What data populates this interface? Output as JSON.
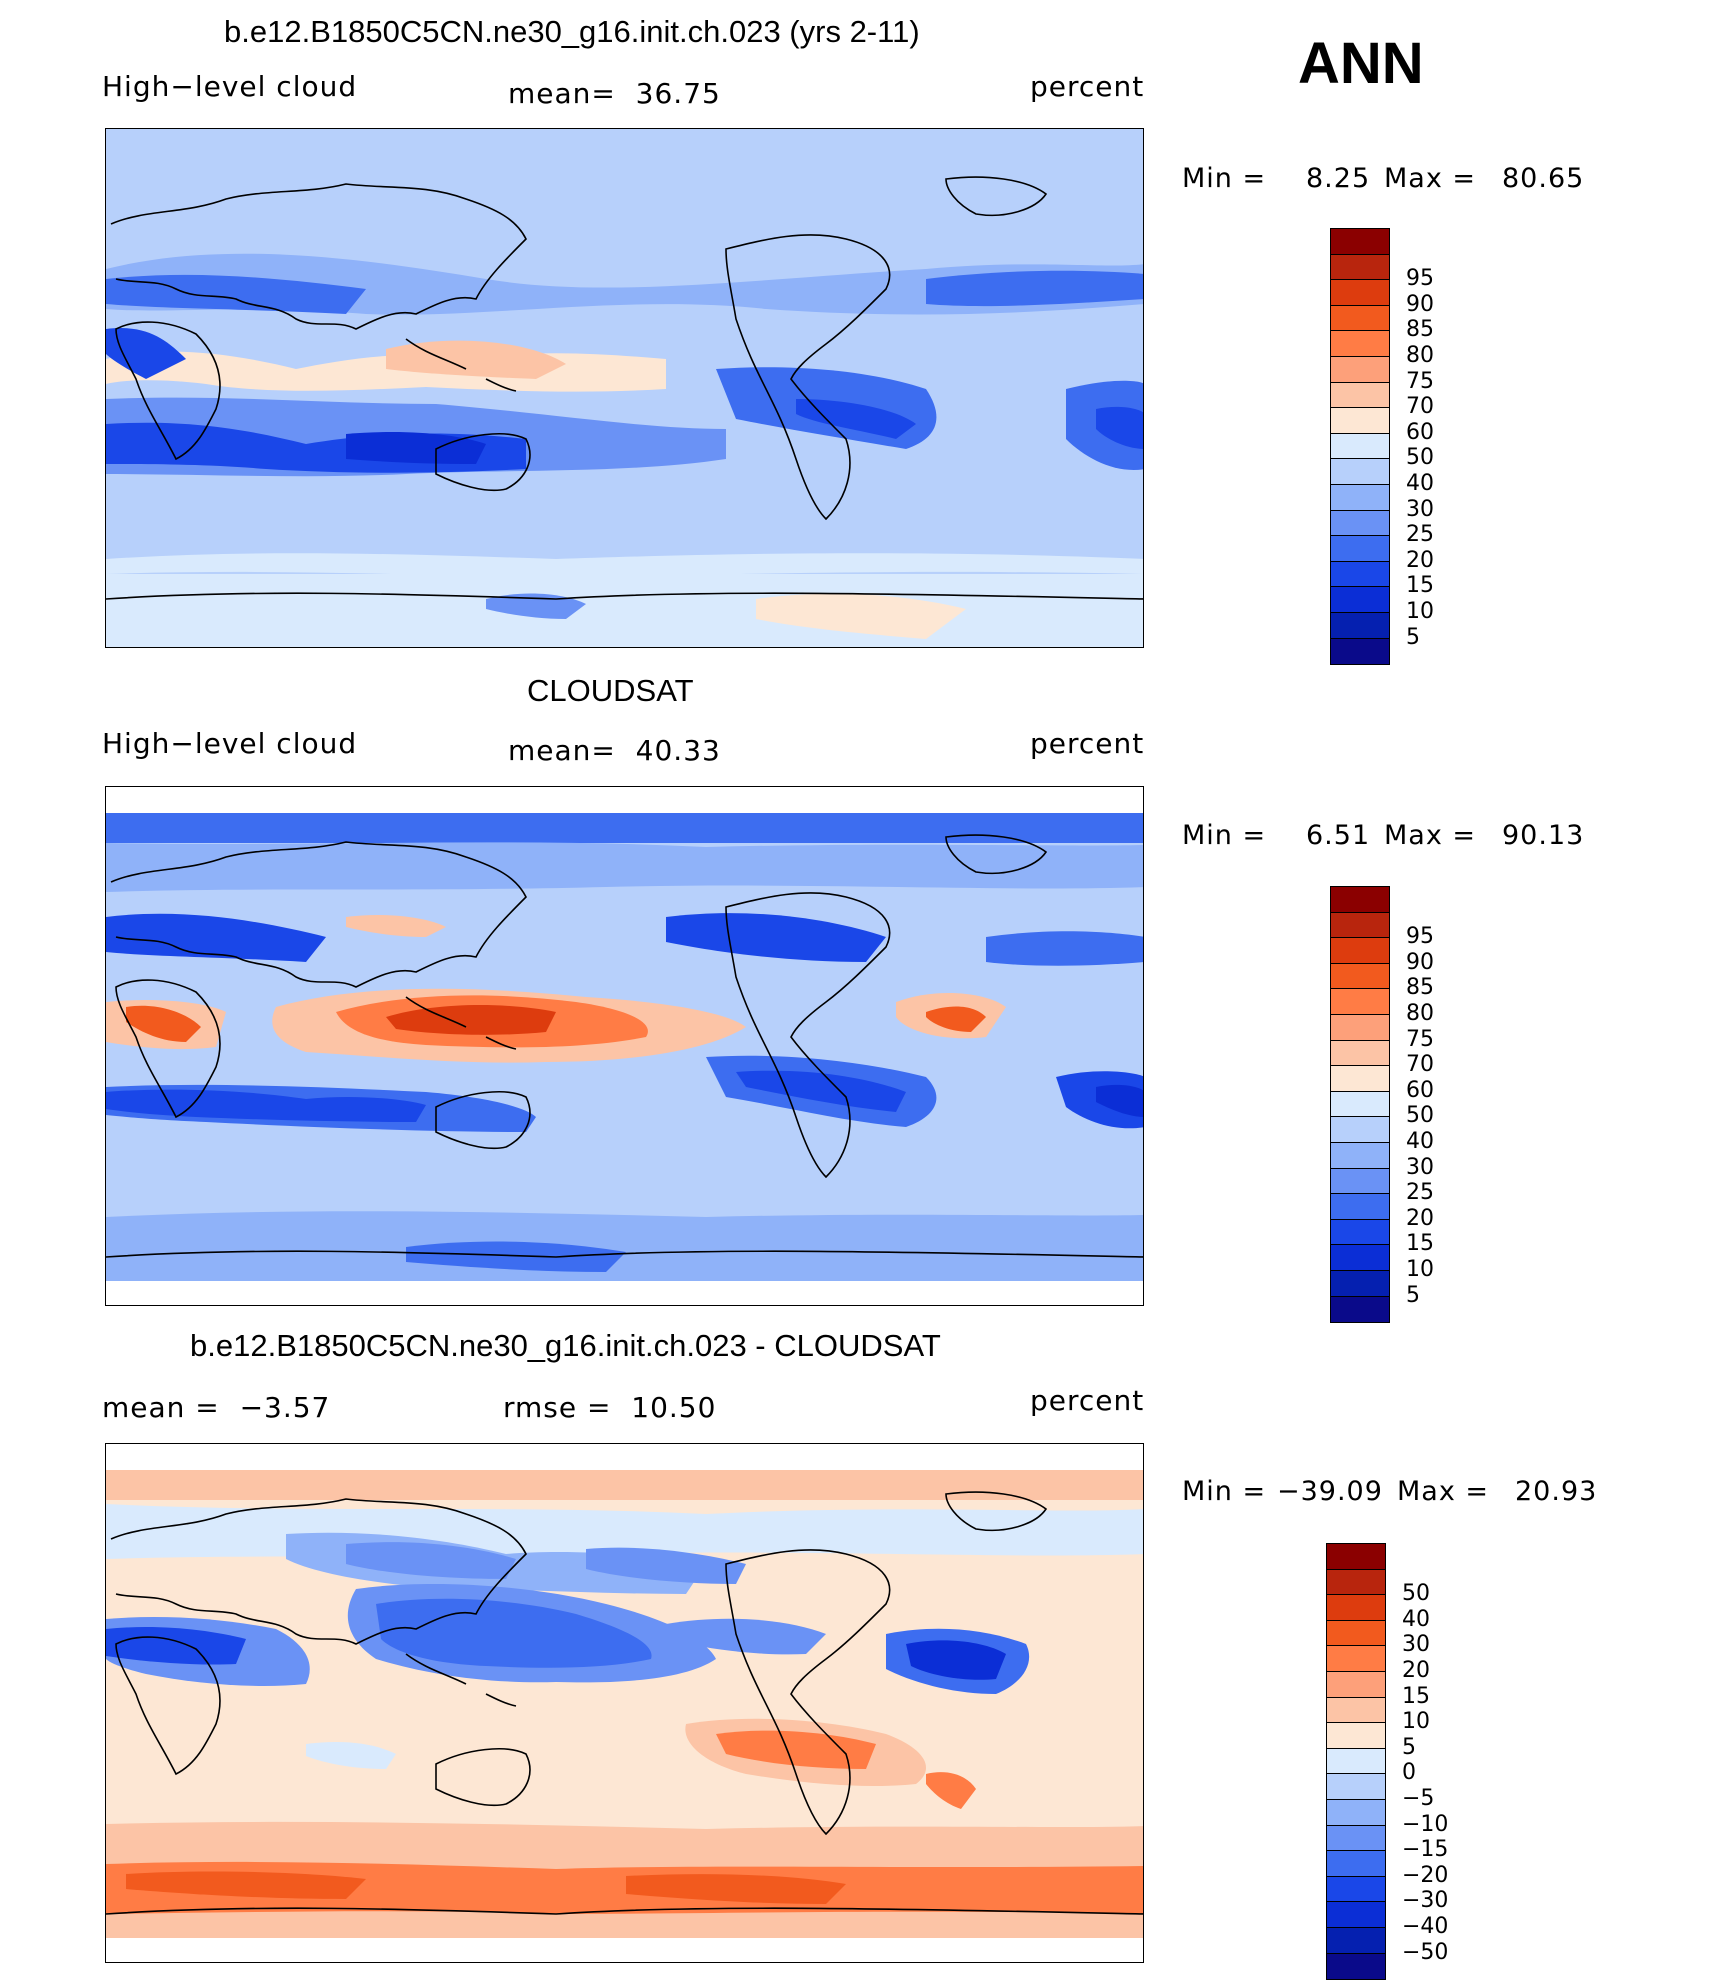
{
  "season": "ANN",
  "colors": {
    "abs_scale": [
      "#8b0000",
      "#b8250d",
      "#dd3c0e",
      "#f25a1e",
      "#ff7c45",
      "#fda07a",
      "#fcc4a6",
      "#fde7d4",
      "#d9eafd",
      "#b7d0fb",
      "#8fb2f9",
      "#6a92f5",
      "#3d6df0",
      "#1a47e8",
      "#0b2ed6",
      "#0520b0",
      "#0a0a8a"
    ],
    "diff_scale": [
      "#8b0000",
      "#b8250d",
      "#dd3c0e",
      "#f25a1e",
      "#ff7c45",
      "#fda07a",
      "#fcc4a6",
      "#fde7d4",
      "#d9eafd",
      "#b7d0fb",
      "#8fb2f9",
      "#6a92f5",
      "#3d6df0",
      "#1a47e8",
      "#0b2ed6",
      "#0520b0",
      "#0a0a8a"
    ]
  },
  "panels": [
    {
      "title": "b.e12.B1850C5CN.ne30_g16.init.ch.023 (yrs 2-11)",
      "left_label": "High−level cloud",
      "center_label": "mean=  36.75",
      "right_label": "percent",
      "min_label": "Min =",
      "min_value": "8.25",
      "max_label": "Max =",
      "max_value": "80.65",
      "colorbar_labels": [
        "95",
        "90",
        "85",
        "80",
        "75",
        "70",
        "60",
        "50",
        "40",
        "30",
        "25",
        "20",
        "15",
        "10",
        "5"
      ]
    },
    {
      "title": "CLOUDSAT",
      "left_label": "High−level cloud",
      "center_label": "mean=  40.33",
      "right_label": "percent",
      "min_label": "Min =",
      "min_value": "6.51",
      "max_label": "Max =",
      "max_value": "90.13",
      "colorbar_labels": [
        "95",
        "90",
        "85",
        "80",
        "75",
        "70",
        "60",
        "50",
        "40",
        "30",
        "25",
        "20",
        "15",
        "10",
        "5"
      ]
    },
    {
      "title": "b.e12.B1850C5CN.ne30_g16.init.ch.023 - CLOUDSAT",
      "left_label": "mean =  −3.57",
      "center_label": "rmse =  10.50",
      "right_label": "percent",
      "min_label": "Min =",
      "min_value": "−39.09",
      "max_label": "Max =",
      "max_value": "20.93",
      "colorbar_labels": [
        "50",
        "40",
        "30",
        "20",
        "15",
        "10",
        "5",
        "0",
        "−5",
        "−10",
        "−15",
        "−20",
        "−30",
        "−40",
        "−50"
      ]
    }
  ]
}
